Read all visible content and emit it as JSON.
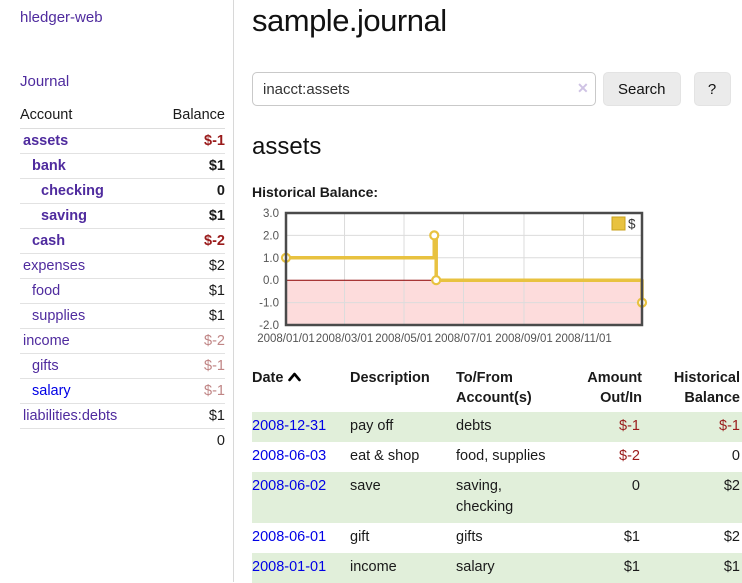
{
  "colors": {
    "link_purple": "#4f2b9e",
    "link_blue": "#0000e6",
    "negative": "#9a1b1b",
    "negative_dim": "#c08585",
    "row_stripe_green": "#e1efda",
    "button_gray": "#ebebeb"
  },
  "sidebar": {
    "brand": "hledger-web",
    "journal_link": "Journal",
    "headers": {
      "account": "Account",
      "balance": "Balance"
    },
    "rows": [
      {
        "name": "assets",
        "balance": "$-1"
      },
      {
        "name": "bank",
        "balance": "$1"
      },
      {
        "name": "checking",
        "balance": "0"
      },
      {
        "name": "saving",
        "balance": "$1"
      },
      {
        "name": "cash",
        "balance": "$-2"
      },
      {
        "name": "expenses",
        "balance": "$2"
      },
      {
        "name": "food",
        "balance": "$1"
      },
      {
        "name": "supplies",
        "balance": "$1"
      },
      {
        "name": "income",
        "balance": "$-2"
      },
      {
        "name": "gifts",
        "balance": "$-1"
      },
      {
        "name": "salary",
        "balance": "$-1"
      },
      {
        "name": "liabilities:debts",
        "balance": "$1"
      }
    ],
    "total": "0"
  },
  "main": {
    "title": "sample.journal",
    "search": {
      "value": "inacct:assets",
      "clear_icon": "✕",
      "button": "Search",
      "help_button": "?"
    },
    "account_heading": "assets",
    "chart_label": "Historical Balance:"
  },
  "chart_data": {
    "type": "line",
    "step": true,
    "title": "Historical Balance:",
    "xlim_days": [
      0,
      365
    ],
    "ylim": [
      -2,
      3
    ],
    "grid": true,
    "legend_position": "top-right",
    "negative_fill": "#fddcdc",
    "zero_line_color": "#8b0000",
    "grid_color": "#dcdcdc",
    "border_color": "#4a4a4a",
    "tick_color": "#545454",
    "y_ticks": [
      3,
      2,
      1,
      0,
      -1,
      -2
    ],
    "x_ticks": [
      {
        "label": "2008/01/01",
        "day": 0
      },
      {
        "label": "2008/03/01",
        "day": 60
      },
      {
        "label": "2008/05/01",
        "day": 121
      },
      {
        "label": "2008/07/01",
        "day": 182
      },
      {
        "label": "2008/09/01",
        "day": 244
      },
      {
        "label": "2008/11/01",
        "day": 305
      }
    ],
    "series": [
      {
        "name": "$",
        "color": "#e8c240",
        "legend_border": "#c9a21c",
        "points": [
          {
            "date": "2008-01-01",
            "day": 0,
            "y": 1
          },
          {
            "date": "2008-06-01",
            "day": 152,
            "y": 2
          },
          {
            "date": "2008-06-03",
            "day": 154,
            "y": 0
          },
          {
            "date": "2008-12-31",
            "day": 365,
            "y": -1
          }
        ]
      }
    ]
  },
  "register": {
    "headers": {
      "date": "Date",
      "description": "Description",
      "accounts": "To/From Account(s)",
      "amount": "Amount Out/In",
      "balance": "Historical Balance"
    },
    "rows": [
      {
        "date": "2008-12-31",
        "description": "pay off",
        "accounts": "debts",
        "amount": "$-1",
        "balance": "$-1"
      },
      {
        "date": "2008-06-03",
        "description": "eat & shop",
        "accounts": "food, supplies",
        "amount": "$-2",
        "balance": "0"
      },
      {
        "date": "2008-06-02",
        "description": "save",
        "accounts": "saving, checking",
        "amount": "0",
        "balance": "$2"
      },
      {
        "date": "2008-06-01",
        "description": "gift",
        "accounts": "gifts",
        "amount": "$1",
        "balance": "$2"
      },
      {
        "date": "2008-01-01",
        "description": "income",
        "accounts": "salary",
        "amount": "$1",
        "balance": "$1"
      }
    ]
  }
}
